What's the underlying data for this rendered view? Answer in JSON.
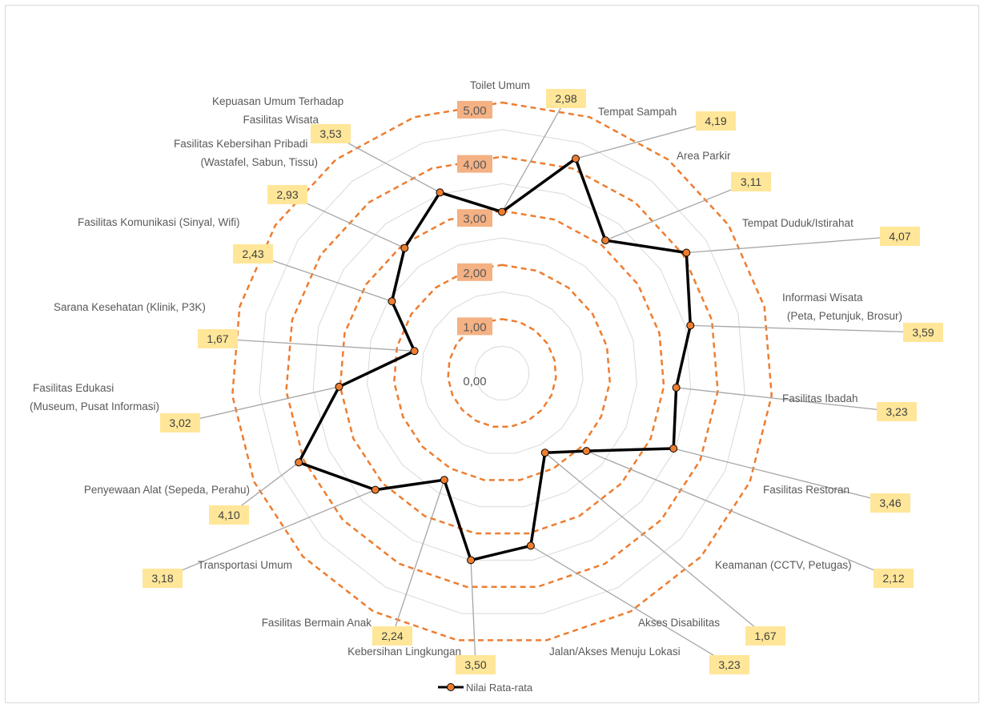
{
  "chart_data": {
    "type": "radar",
    "title": "",
    "series": [
      {
        "name": "Nilai Rata-rata",
        "values": [
          2.98,
          4.19,
          3.11,
          4.07,
          3.59,
          3.23,
          3.46,
          2.12,
          1.67,
          3.23,
          3.5,
          2.24,
          3.18,
          4.1,
          3.02,
          1.67,
          2.43,
          2.93,
          3.53
        ]
      }
    ],
    "categories": [
      "Toilet Umum",
      "Tempat Sampah",
      "Area Parkir",
      "Tempat Duduk/Istirahat",
      "Informasi Wisata (Peta, Petunjuk, Brosur)",
      "Fasilitas Ibadah",
      "Fasilitas Restoran",
      "Keamanan (CCTV, Petugas)",
      "Akses Disabilitas",
      "Jalan/Akses Menuju Lokasi",
      "Kebersihan Lingkungan",
      "Fasilitas Bermain Anak",
      "Transportasi Umum",
      "Penyewaan Alat (Sepeda, Perahu)",
      "Fasilitas Edukasi (Museum, Pusat Informasi)",
      "Sarana Kesehatan (Klinik, P3K)",
      "Fasilitas Komunikasi (Sinyal, Wifi)",
      "Fasilitas Kebersihan Pribadi (Wastafel, Sabun, Tissu)",
      "Kepuasan Umum Terhadap Fasilitas Wisata"
    ],
    "value_labels": [
      "2,98",
      "4,19",
      "3,11",
      "4,07",
      "3,59",
      "3,23",
      "3,46",
      "2,12",
      "1,67",
      "3,23",
      "3,50",
      "2,24",
      "3,18",
      "4,10",
      "3,02",
      "1,67",
      "2,43",
      "2,93",
      "3,53"
    ],
    "axis_ticks": [
      "0,00",
      "1,00",
      "2,00",
      "3,00",
      "4,00",
      "5,00"
    ],
    "rlim": [
      0,
      5
    ],
    "legend": {
      "position": "bottom",
      "label": "Nilai Rata-rata"
    },
    "colors": {
      "series_line": "#000000",
      "marker_fill": "#ed7d31",
      "major_grid": "#ed7d31",
      "minor_grid": "#d9d9d9",
      "leader_line": "#a6a6a6",
      "value_label_fill": "#ffe699",
      "tick_label_fill": "#f4b183"
    }
  }
}
